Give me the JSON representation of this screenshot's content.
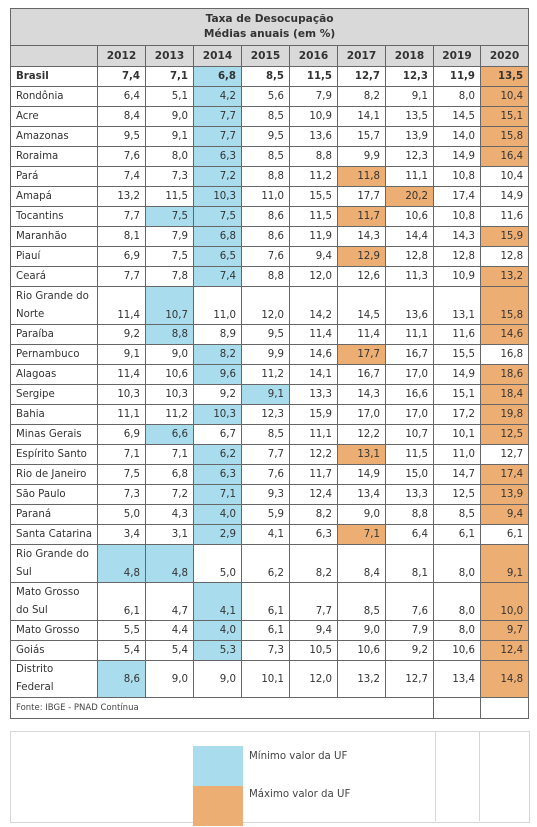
{
  "title_line1": "Taxa de Desocupação",
  "title_line2": "Médias anuais (em %)",
  "years": [
    "2012",
    "2013",
    "2014",
    "2015",
    "2016",
    "2017",
    "2018",
    "2019",
    "2020"
  ],
  "rows": [
    {
      "name": "Brasil",
      "values": [
        "7,4",
        "7,1",
        "6,8",
        "8,5",
        "11,5",
        "12,7",
        "12,3",
        "11,9",
        "13,5"
      ],
      "min": 2,
      "max": 8,
      "bold": true,
      "tall": false
    },
    {
      "name": "Rondônia",
      "values": [
        "6,4",
        "5,1",
        "4,2",
        "5,6",
        "7,9",
        "8,2",
        "9,1",
        "8,0",
        "10,4"
      ],
      "min": 2,
      "max": 8,
      "bold": false,
      "tall": false
    },
    {
      "name": "Acre",
      "values": [
        "8,4",
        "9,0",
        "7,7",
        "8,5",
        "10,9",
        "14,1",
        "13,5",
        "14,5",
        "15,1"
      ],
      "min": 2,
      "max": 8,
      "bold": false,
      "tall": false
    },
    {
      "name": "Amazonas",
      "values": [
        "9,5",
        "9,1",
        "7,7",
        "9,5",
        "13,6",
        "15,7",
        "13,9",
        "14,0",
        "15,8"
      ],
      "min": 2,
      "max": 8,
      "bold": false,
      "tall": false
    },
    {
      "name": "Roraima",
      "values": [
        "7,6",
        "8,0",
        "6,3",
        "8,5",
        "8,8",
        "9,9",
        "12,3",
        "14,9",
        "16,4"
      ],
      "min": 2,
      "max": 8,
      "bold": false,
      "tall": false
    },
    {
      "name": "Pará",
      "values": [
        "7,4",
        "7,3",
        "7,2",
        "8,8",
        "11,2",
        "11,8",
        "11,1",
        "10,8",
        "10,4"
      ],
      "min": 2,
      "max": 5,
      "bold": false,
      "tall": false
    },
    {
      "name": "Amapá",
      "values": [
        "13,2",
        "11,5",
        "10,3",
        "11,0",
        "15,5",
        "17,7",
        "20,2",
        "17,4",
        "14,9"
      ],
      "min": 2,
      "max": 6,
      "bold": false,
      "tall": false
    },
    {
      "name": "Tocantins",
      "values": [
        "7,7",
        "7,5",
        "7,5",
        "8,6",
        "11,5",
        "11,7",
        "10,6",
        "10,8",
        "11,6"
      ],
      "min": [
        1,
        2
      ],
      "max": 5,
      "bold": false,
      "tall": false
    },
    {
      "name": "Maranhão",
      "values": [
        "8,1",
        "7,9",
        "6,8",
        "8,6",
        "11,9",
        "14,3",
        "14,4",
        "14,3",
        "15,9"
      ],
      "min": 2,
      "max": 8,
      "bold": false,
      "tall": false
    },
    {
      "name": "Piauí",
      "values": [
        "6,9",
        "7,5",
        "6,5",
        "7,6",
        "9,4",
        "12,9",
        "12,8",
        "12,8",
        "12,8"
      ],
      "min": 2,
      "max": 5,
      "bold": false,
      "tall": false
    },
    {
      "name": "Ceará",
      "values": [
        "7,7",
        "7,8",
        "7,4",
        "8,8",
        "12,0",
        "12,6",
        "11,3",
        "10,9",
        "13,2"
      ],
      "min": 2,
      "max": 8,
      "bold": false,
      "tall": false
    },
    {
      "name": "Rio Grande do Norte",
      "values": [
        "11,4",
        "10,7",
        "11,0",
        "12,0",
        "14,2",
        "14,5",
        "13,6",
        "13,1",
        "15,8"
      ],
      "min": 1,
      "max": 8,
      "bold": false,
      "tall": true
    },
    {
      "name": "Paraíba",
      "values": [
        "9,2",
        "8,8",
        "8,9",
        "9,5",
        "11,4",
        "11,4",
        "11,1",
        "11,6",
        "14,6"
      ],
      "min": 1,
      "max": 8,
      "bold": false,
      "tall": false
    },
    {
      "name": "Pernambuco",
      "values": [
        "9,1",
        "9,0",
        "8,2",
        "9,9",
        "14,6",
        "17,7",
        "16,7",
        "15,5",
        "16,8"
      ],
      "min": 2,
      "max": 5,
      "bold": false,
      "tall": false
    },
    {
      "name": "Alagoas",
      "values": [
        "11,4",
        "10,6",
        "9,6",
        "11,2",
        "14,1",
        "16,7",
        "17,0",
        "14,9",
        "18,6"
      ],
      "min": 2,
      "max": 8,
      "bold": false,
      "tall": false
    },
    {
      "name": "Sergipe",
      "values": [
        "10,3",
        "10,3",
        "9,2",
        "9,1",
        "13,3",
        "14,3",
        "16,6",
        "15,1",
        "18,4"
      ],
      "min": 3,
      "max": 8,
      "bold": false,
      "tall": false
    },
    {
      "name": "Bahia",
      "values": [
        "11,1",
        "11,2",
        "10,3",
        "12,3",
        "15,9",
        "17,0",
        "17,0",
        "17,2",
        "19,8"
      ],
      "min": 2,
      "max": 8,
      "bold": false,
      "tall": false
    },
    {
      "name": "Minas Gerais",
      "values": [
        "6,9",
        "6,6",
        "6,7",
        "8,5",
        "11,1",
        "12,2",
        "10,7",
        "10,1",
        "12,5"
      ],
      "min": 1,
      "max": 8,
      "bold": false,
      "tall": false
    },
    {
      "name": "Espírito Santo",
      "values": [
        "7,1",
        "7,1",
        "6,2",
        "7,7",
        "12,2",
        "13,1",
        "11,5",
        "11,0",
        "12,7"
      ],
      "min": 2,
      "max": 5,
      "bold": false,
      "tall": false
    },
    {
      "name": "Rio de Janeiro",
      "values": [
        "7,5",
        "6,8",
        "6,3",
        "7,6",
        "11,7",
        "14,9",
        "15,0",
        "14,7",
        "17,4"
      ],
      "min": 2,
      "max": 8,
      "bold": false,
      "tall": false
    },
    {
      "name": "São Paulo",
      "values": [
        "7,3",
        "7,2",
        "7,1",
        "9,3",
        "12,4",
        "13,4",
        "13,3",
        "12,5",
        "13,9"
      ],
      "min": 2,
      "max": 8,
      "bold": false,
      "tall": false
    },
    {
      "name": "Paraná",
      "values": [
        "5,0",
        "4,3",
        "4,0",
        "5,9",
        "8,2",
        "9,0",
        "8,8",
        "8,5",
        "9,4"
      ],
      "min": 2,
      "max": 8,
      "bold": false,
      "tall": false
    },
    {
      "name": "Santa Catarina",
      "values": [
        "3,4",
        "3,1",
        "2,9",
        "4,1",
        "6,3",
        "7,1",
        "6,4",
        "6,1",
        "6,1"
      ],
      "min": 2,
      "max": 5,
      "bold": false,
      "tall": false
    },
    {
      "name": "Rio Grande do Sul",
      "values": [
        "4,8",
        "4,8",
        "5,0",
        "6,2",
        "8,2",
        "8,4",
        "8,1",
        "8,0",
        "9,1"
      ],
      "min": [
        0,
        1
      ],
      "max": 8,
      "bold": false,
      "tall": true
    },
    {
      "name": "Mato Grosso do Sul",
      "values": [
        "6,1",
        "4,7",
        "4,1",
        "6,1",
        "7,7",
        "8,5",
        "7,6",
        "8,0",
        "10,0"
      ],
      "min": 2,
      "max": 8,
      "bold": false,
      "tall": true
    },
    {
      "name": "Mato Grosso",
      "values": [
        "5,5",
        "4,4",
        "4,0",
        "6,1",
        "9,4",
        "9,0",
        "7,9",
        "8,0",
        "9,7"
      ],
      "min": 2,
      "max": 8,
      "bold": false,
      "tall": false
    },
    {
      "name": "Goiás",
      "values": [
        "5,4",
        "5,4",
        "5,3",
        "7,3",
        "10,5",
        "10,6",
        "9,2",
        "10,6",
        "12,4"
      ],
      "min": 2,
      "max": 8,
      "bold": false,
      "tall": false
    },
    {
      "name": "Distrito Federal",
      "values": [
        "8,6",
        "9,0",
        "9,0",
        "10,1",
        "12,0",
        "13,2",
        "12,7",
        "13,4",
        "14,8"
      ],
      "min": 0,
      "max": 8,
      "bold": false,
      "tall": false
    }
  ],
  "source": "Fonte: IBGE - PNAD Contínua",
  "legend": {
    "min_label": "Mínimo valor da UF",
    "max_label": "Máximo valor da UF",
    "min_color": "#a9dced",
    "max_color": "#edae74"
  }
}
